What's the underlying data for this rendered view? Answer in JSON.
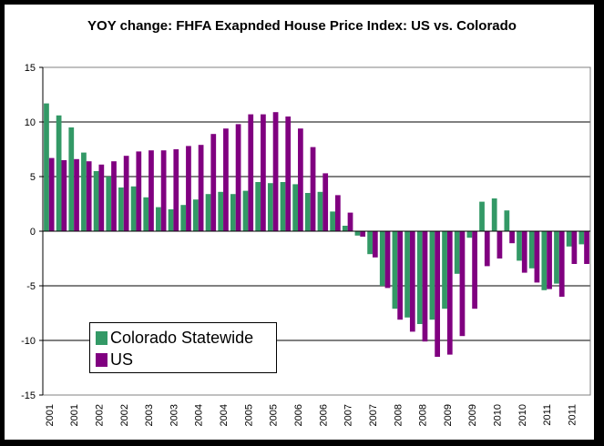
{
  "chart_data": {
    "type": "bar",
    "title": "YOY change: FHFA Exapnded House Price Index: US vs. Colorado",
    "xlabel": "",
    "ylabel": "",
    "ylim": [
      -15,
      15
    ],
    "yticks": [
      -15,
      -10,
      -5,
      0,
      5,
      10,
      15
    ],
    "grid": true,
    "legend": "lower-left",
    "categories": [
      "2001",
      "2001",
      "2001",
      "2001",
      "2002",
      "2002",
      "2002",
      "2002",
      "2003",
      "2003",
      "2003",
      "2003",
      "2004",
      "2004",
      "2004",
      "2004",
      "2005",
      "2005",
      "2005",
      "2005",
      "2006",
      "2006",
      "2006",
      "2006",
      "2007",
      "2007",
      "2007",
      "2007",
      "2008",
      "2008",
      "2008",
      "2008",
      "2009",
      "2009",
      "2009",
      "2009",
      "2010",
      "2010",
      "2010",
      "2010",
      "2011",
      "2011",
      "2011",
      "2011"
    ],
    "tick_labels": [
      "2001",
      "2001",
      "2002",
      "2002",
      "2003",
      "2003",
      "2004",
      "2004",
      "2005",
      "2005",
      "2006",
      "2006",
      "2006",
      "2007",
      "2007",
      "2008",
      "2008",
      "2009",
      "2009",
      "2010",
      "2010",
      "2011",
      "2011"
    ],
    "series": [
      {
        "name": "Colorado Statewide",
        "color": "#339966",
        "values": [
          11.7,
          10.6,
          9.5,
          7.2,
          5.5,
          5.0,
          4.0,
          4.1,
          3.1,
          2.2,
          2.0,
          2.4,
          2.9,
          3.4,
          3.6,
          3.4,
          3.7,
          4.5,
          4.4,
          4.5,
          4.3,
          3.5,
          3.6,
          1.8,
          0.5,
          -0.4,
          -2.1,
          -5.0,
          -7.1,
          -7.9,
          -8.5,
          -8.1,
          -7.1,
          -3.9,
          -0.6,
          2.7,
          3.0,
          1.9,
          -2.7,
          -3.4,
          -5.4,
          -4.8,
          -1.4,
          -1.2
        ]
      },
      {
        "name": "US",
        "color": "#800080",
        "values": [
          6.7,
          6.5,
          6.6,
          6.4,
          6.1,
          6.4,
          6.9,
          7.3,
          7.4,
          7.4,
          7.5,
          7.8,
          7.9,
          8.9,
          9.4,
          9.8,
          10.7,
          10.7,
          10.9,
          10.5,
          9.4,
          7.7,
          5.3,
          3.3,
          1.7,
          -0.5,
          -2.4,
          -5.2,
          -8.1,
          -9.2,
          -10.1,
          -11.5,
          -11.3,
          -9.6,
          -7.1,
          -3.2,
          -2.5,
          -1.1,
          -3.8,
          -4.7,
          -5.3,
          -6.0,
          -3.0,
          -3.0
        ]
      }
    ]
  },
  "legend": {
    "items": [
      {
        "label": "Colorado Statewide",
        "color": "#339966"
      },
      {
        "label": "US",
        "color": "#800080"
      }
    ]
  }
}
